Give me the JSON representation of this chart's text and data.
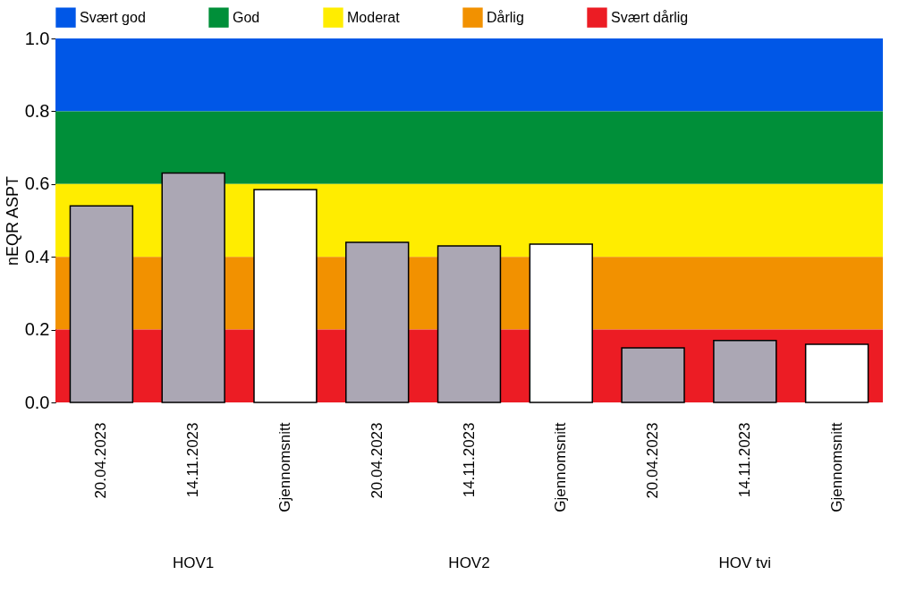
{
  "chart_data": {
    "type": "bar",
    "ylabel": "nEQR ASPT",
    "categories": [
      "20.04.2023",
      "14.11.2023",
      "Gjennomsnitt",
      "20.04.2023",
      "14.11.2023",
      "Gjennomsnitt",
      "20.04.2023",
      "14.11.2023",
      "Gjennomsnitt"
    ],
    "values": [
      0.54,
      0.63,
      0.585,
      0.44,
      0.43,
      0.435,
      0.15,
      0.17,
      0.16
    ],
    "colors": [
      "#aba7b4",
      "#aba7b4",
      "#ffffff",
      "#aba7b4",
      "#aba7b4",
      "#ffffff",
      "#aba7b4",
      "#aba7b4",
      "#ffffff"
    ],
    "ylim": [
      0,
      1
    ],
    "yticks": [
      {
        "value": 0,
        "label": "0.0"
      },
      {
        "value": 0.2,
        "label": "0.2"
      },
      {
        "value": 0.4,
        "label": "0.4"
      },
      {
        "value": 0.6,
        "label": "0.6"
      },
      {
        "value": 0.8,
        "label": "0.8"
      },
      {
        "value": 1,
        "label": "1.0"
      }
    ],
    "bands": [
      {
        "axis": "y",
        "from": 0.8,
        "to": 1,
        "label": "Svært god",
        "color": "#0057e7"
      },
      {
        "axis": "y",
        "from": 0.6,
        "to": 0.8,
        "label": "God",
        "color": "#008f39"
      },
      {
        "axis": "y",
        "from": 0.4,
        "to": 0.6,
        "label": "Moderat",
        "color": "#ffed00"
      },
      {
        "axis": "y",
        "from": 0.2,
        "to": 0.4,
        "label": "Dårlig",
        "color": "#f29100"
      },
      {
        "axis": "y",
        "from": 0,
        "to": 0.2,
        "label": "Svært dårlig",
        "color": "#ec1c24"
      }
    ],
    "annotations": [
      "HOV1",
      "HOV2",
      "HOV tvi"
    ],
    "legend": "top",
    "grid": false
  }
}
